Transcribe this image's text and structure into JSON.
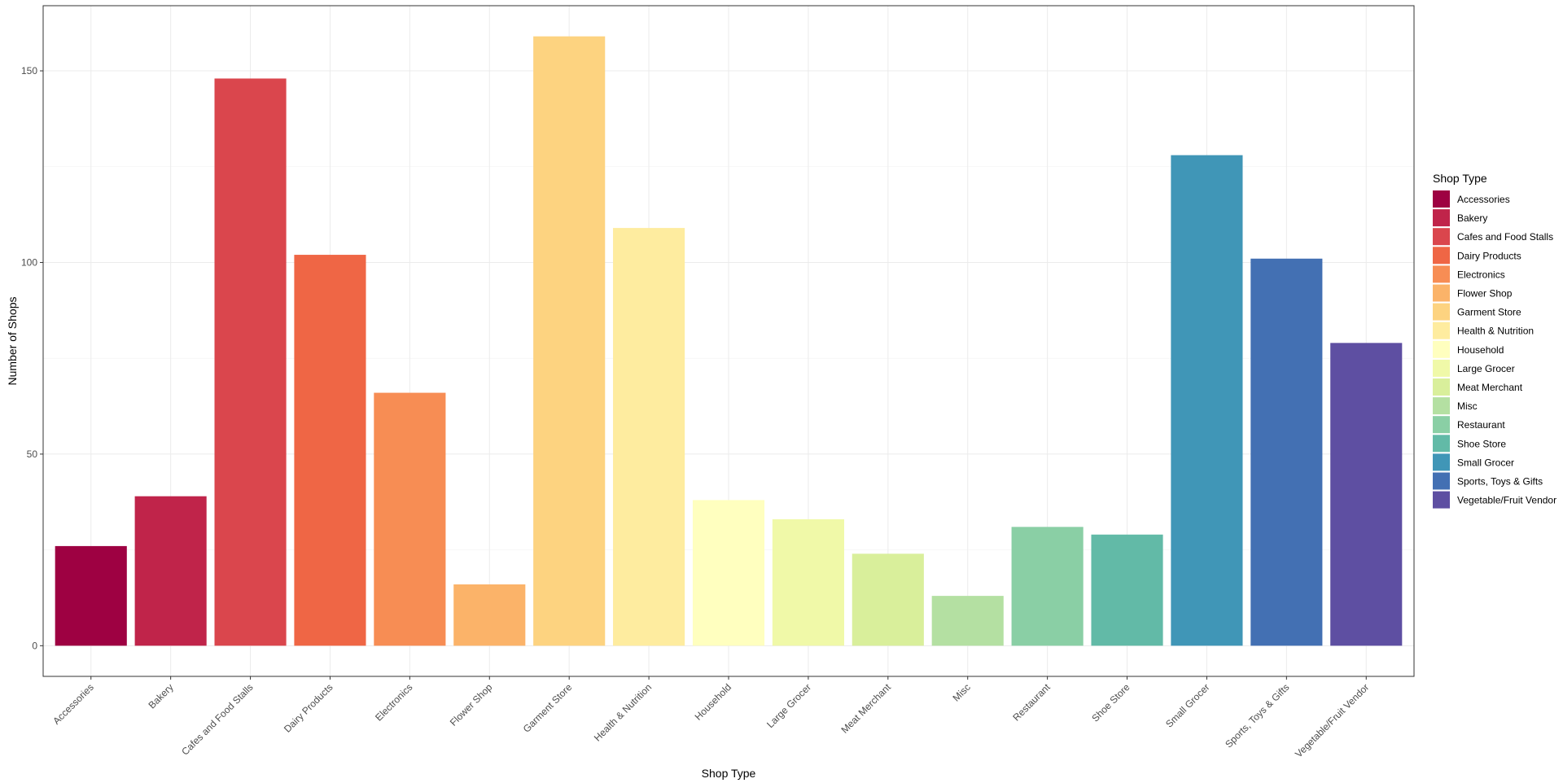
{
  "chart_data": {
    "type": "bar",
    "title": "",
    "xlabel": "Shop Type",
    "ylabel": "Number of Shops",
    "ylim": [
      -8,
      167
    ],
    "yticks": [
      0,
      50,
      100,
      150
    ],
    "grid": true,
    "legend_position": "right",
    "legend_title": "Shop Type",
    "categories": [
      "Accessories",
      "Bakery",
      "Cafes and Food Stalls",
      "Dairy Products",
      "Electronics",
      "Flower Shop",
      "Garment Store",
      "Health & Nutrition",
      "Household",
      "Large Grocer",
      "Meat Merchant",
      "Misc",
      "Restaurant",
      "Shoe Store",
      "Small Grocer",
      "Sports, Toys & Gifts",
      "Vegetable/Fruit Vendor"
    ],
    "values": [
      26,
      39,
      148,
      102,
      66,
      16,
      159,
      109,
      38,
      33,
      24,
      13,
      31,
      29,
      128,
      101,
      79
    ],
    "colors": [
      "#9E0142",
      "#C0244A",
      "#DA464D",
      "#EF6645",
      "#F78D54",
      "#FBB369",
      "#FDD380",
      "#FEEC9F",
      "#FFFFBF",
      "#F0F9A8",
      "#D9EF9B",
      "#B4E0A2",
      "#8ACFA5",
      "#62BAA7",
      "#4096B7",
      "#4370B3",
      "#5E4FA2"
    ]
  }
}
